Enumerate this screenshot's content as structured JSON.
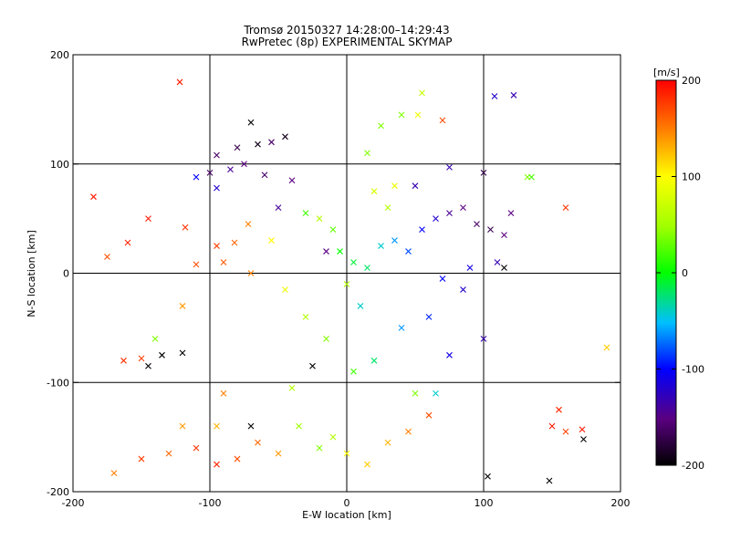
{
  "chart_data": {
    "type": "scatter",
    "title": "Tromsø 20150327 14:28:00–14:29:43",
    "subtitle": "RwPretec (8p) EXPERIMENTAL SKYMAP",
    "xlabel": "E-W location [km]",
    "ylabel": "N-S location [km]",
    "xlim": [
      -200,
      200
    ],
    "ylim": [
      -200,
      200
    ],
    "xticks": [
      "-200",
      "-100",
      "0",
      "100",
      "200"
    ],
    "yticks": [
      "-200",
      "-100",
      "0",
      "100",
      "200"
    ],
    "grid": true,
    "colorbar": {
      "label": "[m/s]",
      "range": [
        -200,
        200
      ],
      "ticks": [
        "200",
        "100",
        "0",
        "-100",
        "-200"
      ],
      "colormap": "black-purple-blue-cyan-green-yellow-red"
    },
    "markers": [
      "x (large)",
      "dot (small)"
    ],
    "points": [
      {
        "x": -122,
        "y": 175,
        "v": 190,
        "m": "x"
      },
      {
        "x": -185,
        "y": 70,
        "v": 190,
        "m": "x"
      },
      {
        "x": -160,
        "y": 28,
        "v": 185,
        "m": "x"
      },
      {
        "x": -175,
        "y": 15,
        "v": 170,
        "m": "x"
      },
      {
        "x": -145,
        "y": 50,
        "v": 190,
        "m": "x"
      },
      {
        "x": -118,
        "y": 42,
        "v": 180,
        "m": "x"
      },
      {
        "x": -95,
        "y": 25,
        "v": 175,
        "m": "x"
      },
      {
        "x": -82,
        "y": 28,
        "v": 160,
        "m": "x"
      },
      {
        "x": -72,
        "y": 45,
        "v": 150,
        "m": "x"
      },
      {
        "x": -110,
        "y": 8,
        "v": 170,
        "m": "x"
      },
      {
        "x": -90,
        "y": 10,
        "v": 165,
        "m": "x"
      },
      {
        "x": -120,
        "y": -30,
        "v": 140,
        "m": "x"
      },
      {
        "x": -163,
        "y": -80,
        "v": 180,
        "m": "x"
      },
      {
        "x": -150,
        "y": -78,
        "v": 175,
        "m": "x"
      },
      {
        "x": -140,
        "y": -60,
        "v": 40,
        "m": "x"
      },
      {
        "x": -135,
        "y": -75,
        "v": -200,
        "m": "x"
      },
      {
        "x": -120,
        "y": -73,
        "v": -200,
        "m": "x"
      },
      {
        "x": -145,
        "y": -85,
        "v": -200,
        "m": "x"
      },
      {
        "x": -90,
        "y": -110,
        "v": 150,
        "m": "x"
      },
      {
        "x": -80,
        "y": 115,
        "v": -170,
        "m": "x"
      },
      {
        "x": -95,
        "y": 108,
        "v": -160,
        "m": "x"
      },
      {
        "x": -75,
        "y": 100,
        "v": -150,
        "m": "x"
      },
      {
        "x": -85,
        "y": 95,
        "v": -140,
        "m": "x"
      },
      {
        "x": -100,
        "y": 92,
        "v": -160,
        "m": "x"
      },
      {
        "x": -65,
        "y": 118,
        "v": -190,
        "m": "x"
      },
      {
        "x": -55,
        "y": 120,
        "v": -160,
        "m": "x"
      },
      {
        "x": -45,
        "y": 125,
        "v": -190,
        "m": "x"
      },
      {
        "x": -70,
        "y": 138,
        "v": -200,
        "m": "x"
      },
      {
        "x": -110,
        "y": 88,
        "v": -100,
        "m": "x"
      },
      {
        "x": -60,
        "y": 90,
        "v": -160,
        "m": "x"
      },
      {
        "x": -40,
        "y": 85,
        "v": -150,
        "m": "x"
      },
      {
        "x": -95,
        "y": 78,
        "v": -120,
        "m": "x"
      },
      {
        "x": -50,
        "y": 60,
        "v": -140,
        "m": "x"
      },
      {
        "x": -30,
        "y": 55,
        "v": 20,
        "m": "x"
      },
      {
        "x": -20,
        "y": 50,
        "v": 60,
        "m": "x"
      },
      {
        "x": -10,
        "y": 40,
        "v": 30,
        "m": "x"
      },
      {
        "x": -5,
        "y": 20,
        "v": 0,
        "m": "x"
      },
      {
        "x": 5,
        "y": 10,
        "v": -10,
        "m": "x"
      },
      {
        "x": 15,
        "y": 5,
        "v": -20,
        "m": "x"
      },
      {
        "x": 25,
        "y": 25,
        "v": -40,
        "m": "x"
      },
      {
        "x": 35,
        "y": 30,
        "v": -60,
        "m": "x"
      },
      {
        "x": 45,
        "y": 20,
        "v": -80,
        "m": "x"
      },
      {
        "x": 55,
        "y": 40,
        "v": -100,
        "m": "x"
      },
      {
        "x": 65,
        "y": 50,
        "v": -120,
        "m": "x"
      },
      {
        "x": 75,
        "y": 55,
        "v": -140,
        "m": "x"
      },
      {
        "x": 85,
        "y": 60,
        "v": -150,
        "m": "x"
      },
      {
        "x": 95,
        "y": 45,
        "v": -160,
        "m": "x"
      },
      {
        "x": 105,
        "y": 40,
        "v": -170,
        "m": "x"
      },
      {
        "x": 115,
        "y": 35,
        "v": -150,
        "m": "x"
      },
      {
        "x": 110,
        "y": 10,
        "v": -130,
        "m": "x"
      },
      {
        "x": 90,
        "y": 5,
        "v": -110,
        "m": "x"
      },
      {
        "x": 70,
        "y": -5,
        "v": -100,
        "m": "x"
      },
      {
        "x": 85,
        "y": -15,
        "v": -120,
        "m": "x"
      },
      {
        "x": 60,
        "y": -40,
        "v": -90,
        "m": "x"
      },
      {
        "x": 75,
        "y": -75,
        "v": -110,
        "m": "x"
      },
      {
        "x": 100,
        "y": -60,
        "v": -130,
        "m": "x"
      },
      {
        "x": 40,
        "y": -50,
        "v": -60,
        "m": "x"
      },
      {
        "x": 30,
        "y": 60,
        "v": 60,
        "m": "x"
      },
      {
        "x": 20,
        "y": 75,
        "v": 80,
        "m": "x"
      },
      {
        "x": 35,
        "y": 80,
        "v": 90,
        "m": "x"
      },
      {
        "x": 50,
        "y": 80,
        "v": -130,
        "m": "x"
      },
      {
        "x": 75,
        "y": 97,
        "v": -130,
        "m": "x"
      },
      {
        "x": 100,
        "y": 92,
        "v": -170,
        "m": "x"
      },
      {
        "x": 40,
        "y": 145,
        "v": 40,
        "m": "x"
      },
      {
        "x": 52,
        "y": 145,
        "v": 90,
        "m": "x"
      },
      {
        "x": 55,
        "y": 165,
        "v": 70,
        "m": "x"
      },
      {
        "x": 70,
        "y": 140,
        "v": 170,
        "m": "x"
      },
      {
        "x": 108,
        "y": 162,
        "v": -120,
        "m": "x"
      },
      {
        "x": 122,
        "y": 163,
        "v": -130,
        "m": "x"
      },
      {
        "x": 135,
        "y": 88,
        "v": 20,
        "m": "x"
      },
      {
        "x": 132,
        "y": 88,
        "v": 40,
        "m": "x"
      },
      {
        "x": 115,
        "y": 5,
        "v": -200,
        "m": "x"
      },
      {
        "x": 120,
        "y": 55,
        "v": -150,
        "m": "x"
      },
      {
        "x": 160,
        "y": 60,
        "v": 180,
        "m": "x"
      },
      {
        "x": 190,
        "y": -68,
        "v": 120,
        "m": "x"
      },
      {
        "x": 150,
        "y": -140,
        "v": 190,
        "m": "x"
      },
      {
        "x": 155,
        "y": -125,
        "v": 185,
        "m": "x"
      },
      {
        "x": 160,
        "y": -145,
        "v": 175,
        "m": "x"
      },
      {
        "x": 172,
        "y": -143,
        "v": 190,
        "m": "x"
      },
      {
        "x": 173,
        "y": -152,
        "v": -200,
        "m": "x"
      },
      {
        "x": 148,
        "y": -190,
        "v": -200,
        "m": "x"
      },
      {
        "x": 103,
        "y": -186,
        "v": -200,
        "m": "x"
      },
      {
        "x": 60,
        "y": -130,
        "v": 170,
        "m": "x"
      },
      {
        "x": 45,
        "y": -145,
        "v": 150,
        "m": "x"
      },
      {
        "x": 30,
        "y": -155,
        "v": 130,
        "m": "x"
      },
      {
        "x": 15,
        "y": -175,
        "v": 120,
        "m": "x"
      },
      {
        "x": 0,
        "y": -165,
        "v": 100,
        "m": "x"
      },
      {
        "x": -10,
        "y": -150,
        "v": 60,
        "m": "x"
      },
      {
        "x": -20,
        "y": -160,
        "v": 40,
        "m": "x"
      },
      {
        "x": -35,
        "y": -140,
        "v": 50,
        "m": "x"
      },
      {
        "x": -50,
        "y": -165,
        "v": 140,
        "m": "x"
      },
      {
        "x": -65,
        "y": -155,
        "v": 160,
        "m": "x"
      },
      {
        "x": -80,
        "y": -170,
        "v": 170,
        "m": "x"
      },
      {
        "x": -95,
        "y": -175,
        "v": 185,
        "m": "x"
      },
      {
        "x": -110,
        "y": -160,
        "v": 180,
        "m": "x"
      },
      {
        "x": -130,
        "y": -165,
        "v": 160,
        "m": "x"
      },
      {
        "x": -150,
        "y": -170,
        "v": 175,
        "m": "x"
      },
      {
        "x": -170,
        "y": -183,
        "v": 150,
        "m": "x"
      },
      {
        "x": -120,
        "y": -140,
        "v": 140,
        "m": "x"
      },
      {
        "x": -95,
        "y": -140,
        "v": 130,
        "m": "x"
      },
      {
        "x": -70,
        "y": -140,
        "v": -200,
        "m": "x"
      },
      {
        "x": 25,
        "y": 135,
        "v": 40,
        "m": "x"
      },
      {
        "x": 15,
        "y": 110,
        "v": 40,
        "m": "x"
      },
      {
        "x": -55,
        "y": 30,
        "v": 100,
        "m": "x"
      },
      {
        "x": -70,
        "y": 0,
        "v": 150,
        "m": "x"
      },
      {
        "x": -45,
        "y": -15,
        "v": 90,
        "m": "x"
      },
      {
        "x": -30,
        "y": -40,
        "v": 60,
        "m": "x"
      },
      {
        "x": -15,
        "y": -60,
        "v": 40,
        "m": "x"
      },
      {
        "x": -25,
        "y": -85,
        "v": -200,
        "m": "x"
      },
      {
        "x": 5,
        "y": -90,
        "v": 20,
        "m": "x"
      },
      {
        "x": 20,
        "y": -80,
        "v": -20,
        "m": "x"
      },
      {
        "x": 50,
        "y": -110,
        "v": 40,
        "m": "x"
      },
      {
        "x": 65,
        "y": -110,
        "v": -40,
        "m": "x"
      },
      {
        "x": -40,
        "y": -105,
        "v": 60,
        "m": "x"
      },
      {
        "x": -15,
        "y": 20,
        "v": -150,
        "m": "x"
      },
      {
        "x": 0,
        "y": -10,
        "v": 60,
        "m": "x"
      },
      {
        "x": 10,
        "y": -30,
        "v": -40,
        "m": "x"
      }
    ]
  }
}
